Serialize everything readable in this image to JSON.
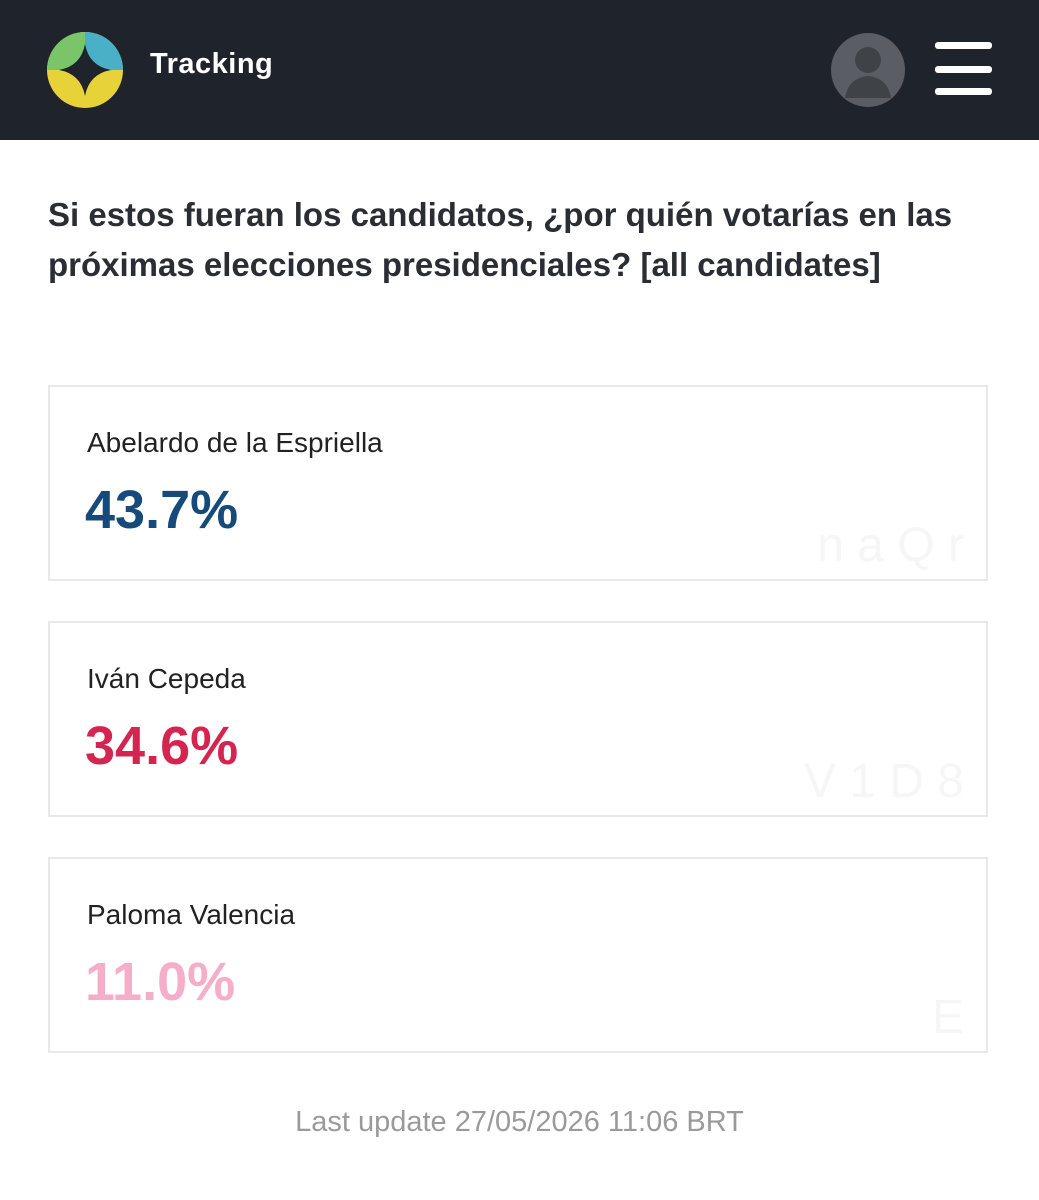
{
  "header": {
    "title": "Tracking"
  },
  "question": "Si estos fueran los candidatos, ¿por quién votarías en las próximas elecciones presidenciales? [all candidates]",
  "cards": [
    {
      "name": "Abelardo de la Espriella",
      "value": "43.7%",
      "color": "#164a7a",
      "watermark": "n a Q r"
    },
    {
      "name": "Iván Cepeda",
      "value": "34.6%",
      "color": "#d42550",
      "watermark": "V 1 D 8"
    },
    {
      "name": "Paloma Valencia",
      "value": "11.0%",
      "color": "#f5adc9",
      "watermark": "E"
    }
  ],
  "footer": "Last update 27/05/2026 11:06 BRT"
}
